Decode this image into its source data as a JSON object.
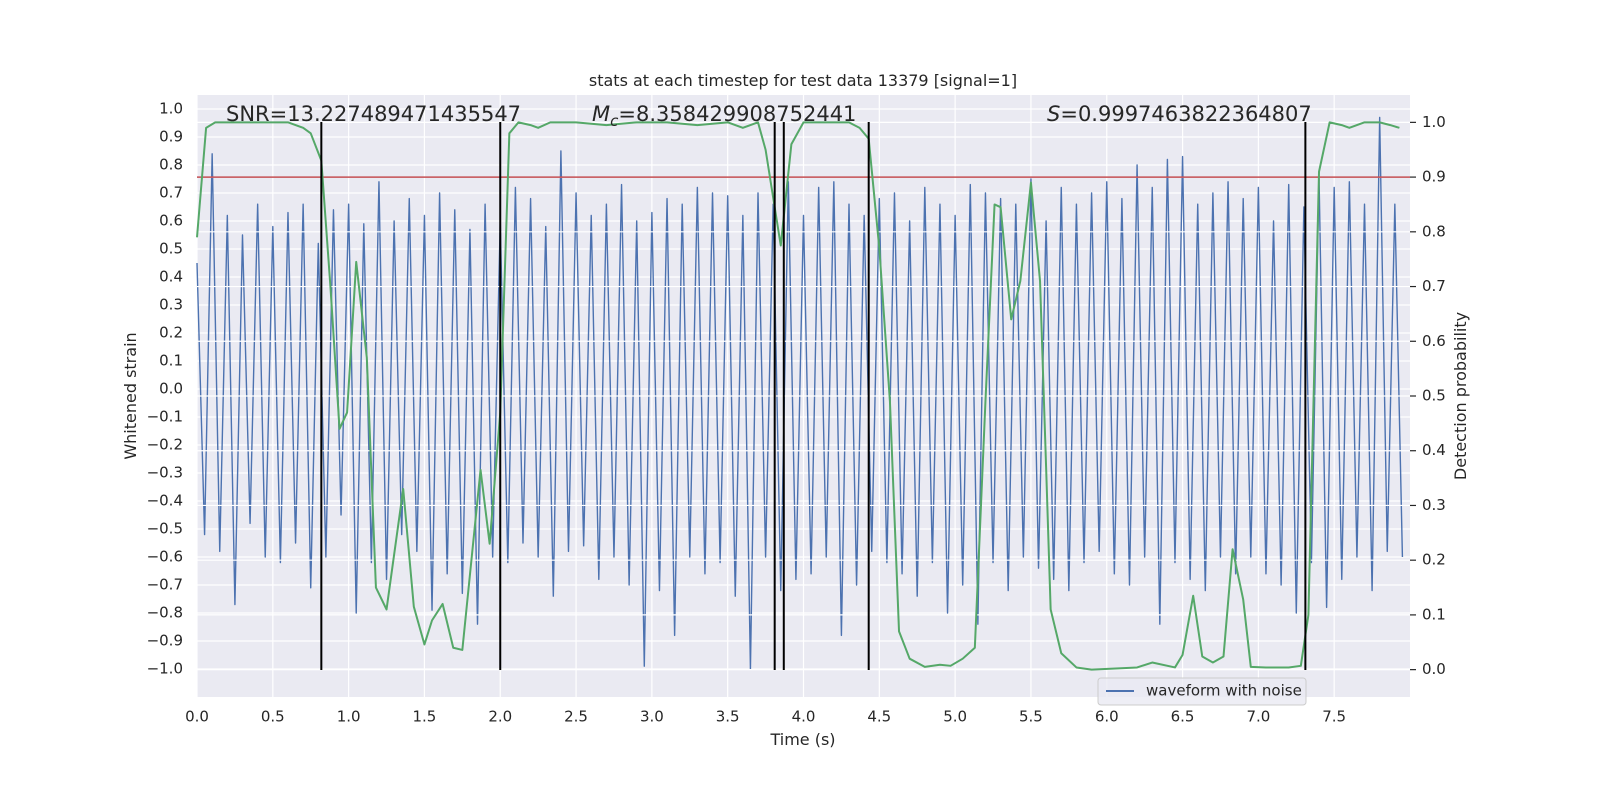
{
  "chart_data": {
    "type": "line",
    "title": "stats at each timestep for test data 13379 [signal=1]",
    "xlabel": "Time (s)",
    "ylabel": "Whitened strain",
    "y2label": "Detection probability",
    "xlim": [
      0,
      8
    ],
    "ylim": [
      -1.1,
      1.05
    ],
    "y2lim": [
      -0.05,
      1.05
    ],
    "grid": true,
    "legend": "lower right",
    "xticks": [
      {
        "value": 0,
        "label": "0.0"
      },
      0.5,
      {
        "value": 1,
        "label": "1.0"
      },
      1.5,
      {
        "value": 2,
        "label": "2.0"
      },
      2.5,
      {
        "value": 3,
        "label": "3.0"
      },
      3.5,
      {
        "value": 4,
        "label": "4.0"
      },
      4.5,
      {
        "value": 5,
        "label": "5.0"
      },
      5.5,
      {
        "value": 6,
        "label": "6.0"
      },
      6.5,
      {
        "value": 7,
        "label": "7.0"
      },
      7.5
    ],
    "yticks": [
      {
        "value": -1,
        "label": "−1.0"
      },
      {
        "value": -0.9,
        "label": "−0.9"
      },
      {
        "value": -0.8,
        "label": "−0.8"
      },
      {
        "value": -0.7,
        "label": "−0.7"
      },
      {
        "value": -0.6,
        "label": "−0.6"
      },
      {
        "value": -0.5,
        "label": "−0.5"
      },
      {
        "value": -0.4,
        "label": "−0.4"
      },
      {
        "value": -0.3,
        "label": "−0.3"
      },
      {
        "value": -0.2,
        "label": "−0.2"
      },
      {
        "value": -0.1,
        "label": "−0.1"
      },
      {
        "value": 0,
        "label": "0.0"
      },
      0.1,
      0.2,
      0.3,
      0.4,
      0.5,
      0.6,
      0.7,
      0.8,
      0.9,
      {
        "value": 1,
        "label": "1.0"
      }
    ],
    "y2ticks": [
      {
        "value": 0,
        "label": "0.0"
      },
      0.1,
      0.2,
      0.3,
      0.4,
      0.5,
      0.6,
      0.7,
      0.8,
      0.9,
      {
        "value": 1,
        "label": "1.0"
      }
    ],
    "series": [
      {
        "name": "waveform with noise",
        "color": "#4c72b0",
        "x": [
          0,
          0.05,
          0.1,
          0.15,
          0.2,
          0.25,
          0.3,
          0.35,
          0.4,
          0.45,
          0.5,
          0.55,
          0.6,
          0.65,
          0.7,
          0.75,
          0.8,
          0.85,
          0.9,
          0.95,
          1,
          1.05,
          1.1,
          1.15,
          1.2,
          1.25,
          1.3,
          1.35,
          1.4,
          1.45,
          1.5,
          1.55,
          1.6,
          1.65,
          1.7,
          1.75,
          1.8,
          1.85,
          1.9,
          1.95,
          2,
          2.05,
          2.1,
          2.15,
          2.2,
          2.25,
          2.3,
          2.35,
          2.4,
          2.45,
          2.5,
          2.55,
          2.6,
          2.65,
          2.7,
          2.75,
          2.8,
          2.85,
          2.9,
          2.95,
          3,
          3.05,
          3.1,
          3.15,
          3.2,
          3.25,
          3.3,
          3.35,
          3.4,
          3.45,
          3.5,
          3.55,
          3.6,
          3.65,
          3.7,
          3.75,
          3.8,
          3.85,
          3.9,
          3.95,
          4,
          4.05,
          4.1,
          4.15,
          4.2,
          4.25,
          4.3,
          4.35,
          4.4,
          4.45,
          4.5,
          4.55,
          4.6,
          4.65,
          4.7,
          4.75,
          4.8,
          4.85,
          4.9,
          4.95,
          5,
          5.05,
          5.1,
          5.15,
          5.2,
          5.25,
          5.3,
          5.35,
          5.4,
          5.45,
          5.5,
          5.55,
          5.6,
          5.65,
          5.7,
          5.75,
          5.8,
          5.85,
          5.9,
          5.95,
          6,
          6.05,
          6.1,
          6.15,
          6.2,
          6.25,
          6.3,
          6.35,
          6.4,
          6.45,
          6.5,
          6.55,
          6.6,
          6.65,
          6.7,
          6.75,
          6.8,
          6.85,
          6.9,
          6.95,
          7,
          7.05,
          7.1,
          7.15,
          7.2,
          7.25,
          7.3,
          7.35,
          7.4,
          7.45,
          7.5,
          7.55,
          7.6,
          7.65,
          7.7,
          7.75,
          7.8,
          7.85,
          7.9,
          7.95
        ],
        "values": [
          0.45,
          -0.52,
          0.84,
          -0.58,
          0.62,
          -0.77,
          0.55,
          -0.48,
          0.66,
          -0.6,
          0.58,
          -0.62,
          0.63,
          -0.55,
          0.66,
          -0.71,
          0.52,
          -0.6,
          0.64,
          -0.45,
          0.66,
          -0.8,
          0.59,
          -0.62,
          0.74,
          -0.68,
          0.6,
          -0.52,
          0.68,
          -0.58,
          0.62,
          -0.79,
          0.7,
          -0.66,
          0.64,
          -0.73,
          0.57,
          -0.84,
          0.66,
          -0.6,
          0.6,
          -0.62,
          0.72,
          -0.55,
          0.68,
          -0.6,
          0.58,
          -0.74,
          0.85,
          -0.58,
          0.7,
          -0.56,
          0.62,
          -0.68,
          0.66,
          -0.6,
          0.73,
          -0.7,
          0.6,
          -0.99,
          0.63,
          -0.72,
          0.68,
          -0.88,
          0.66,
          -0.6,
          0.72,
          -0.66,
          0.7,
          -0.62,
          0.69,
          -0.74,
          0.62,
          -1.0,
          0.7,
          -0.6,
          0.66,
          -0.72,
          0.74,
          -0.68,
          0.62,
          -0.66,
          0.72,
          -0.6,
          0.74,
          -0.88,
          0.66,
          -0.7,
          0.62,
          -0.58,
          0.68,
          -0.62,
          0.7,
          -0.66,
          0.6,
          -0.74,
          0.72,
          -0.62,
          0.66,
          -0.8,
          0.62,
          -0.7,
          0.73,
          -0.84,
          0.7,
          -0.62,
          0.68,
          -0.72,
          0.66,
          -0.6,
          0.75,
          -0.64,
          0.6,
          -0.68,
          0.72,
          -0.72,
          0.66,
          -0.62,
          0.7,
          -0.58,
          0.74,
          -0.66,
          0.68,
          -0.7,
          0.8,
          -0.6,
          0.72,
          -0.84,
          0.82,
          -0.62,
          0.83,
          -0.68,
          0.66,
          -0.72,
          0.7,
          -0.6,
          0.74,
          -0.66,
          0.68,
          -0.6,
          0.72,
          -0.66,
          0.6,
          -0.7,
          0.73,
          -0.8,
          0.65,
          -0.62,
          0.76,
          -0.78,
          0.72,
          -0.68,
          0.74,
          -0.6,
          0.66,
          -0.72,
          0.97,
          -0.58,
          0.66,
          -0.6
        ]
      },
      {
        "color": "#55a868",
        "axis": "y2",
        "x": [
          0,
          0.06,
          0.12,
          0.3,
          0.5,
          0.6,
          0.7,
          0.75,
          0.82,
          0.88,
          0.94,
          0.99,
          1.05,
          1.12,
          1.18,
          1.25,
          1.36,
          1.43,
          1.5,
          1.55,
          1.62,
          1.69,
          1.75,
          1.87,
          1.93,
          2.0,
          2.06,
          2.12,
          2.2,
          2.25,
          2.33,
          2.5,
          2.7,
          2.9,
          3.1,
          3.3,
          3.5,
          3.6,
          3.7,
          3.75,
          3.85,
          3.92,
          4.0,
          4.3,
          4.37,
          4.43,
          4.5,
          4.57,
          4.63,
          4.7,
          4.8,
          4.9,
          4.97,
          5.05,
          5.13,
          5.2,
          5.26,
          5.3,
          5.37,
          5.43,
          5.5,
          5.56,
          5.6,
          5.63,
          5.7,
          5.8,
          5.9,
          6.2,
          6.3,
          6.45,
          6.5,
          6.57,
          6.63,
          6.7,
          6.77,
          6.83,
          6.9,
          6.95,
          7.05,
          7.2,
          7.28,
          7.33,
          7.4,
          7.47,
          7.55,
          7.6,
          7.7,
          7.8,
          7.87,
          7.93
        ],
        "values": [
          0.79,
          0.99,
          1.0,
          1.0,
          1.0,
          1.0,
          0.99,
          0.98,
          0.93,
          0.7,
          0.44,
          0.47,
          0.745,
          0.57,
          0.15,
          0.11,
          0.33,
          0.115,
          0.046,
          0.09,
          0.12,
          0.04,
          0.036,
          0.365,
          0.23,
          0.47,
          0.98,
          1.0,
          0.995,
          0.99,
          1.0,
          1.0,
          0.995,
          1.0,
          1.0,
          0.995,
          1.0,
          0.99,
          1.0,
          0.95,
          0.775,
          0.96,
          1.0,
          1.0,
          0.99,
          0.97,
          0.77,
          0.49,
          0.07,
          0.02,
          0.005,
          0.009,
          0.007,
          0.02,
          0.04,
          0.49,
          0.85,
          0.845,
          0.64,
          0.71,
          0.89,
          0.71,
          0.37,
          0.11,
          0.03,
          0.004,
          0.0,
          0.004,
          0.013,
          0.004,
          0.027,
          0.135,
          0.024,
          0.013,
          0.024,
          0.22,
          0.128,
          0.005,
          0.004,
          0.004,
          0.007,
          0.1,
          0.91,
          1.0,
          0.995,
          0.99,
          1.0,
          1.0,
          0.995,
          0.99
        ]
      }
    ],
    "threshold": {
      "value": 0.9,
      "axis": "y2",
      "color": "#c44e52"
    },
    "vlines": {
      "x": [
        0.82,
        2.0,
        3.81,
        3.87,
        4.43,
        7.31
      ],
      "color": "#000000"
    },
    "annotations": [
      {
        "text": "SNR=13.227489471435547"
      },
      {
        "var": "M",
        "sub": "c",
        "text": "=8.358429908752441"
      },
      {
        "var": "S",
        "text": "=0.9997463822364807"
      }
    ]
  }
}
